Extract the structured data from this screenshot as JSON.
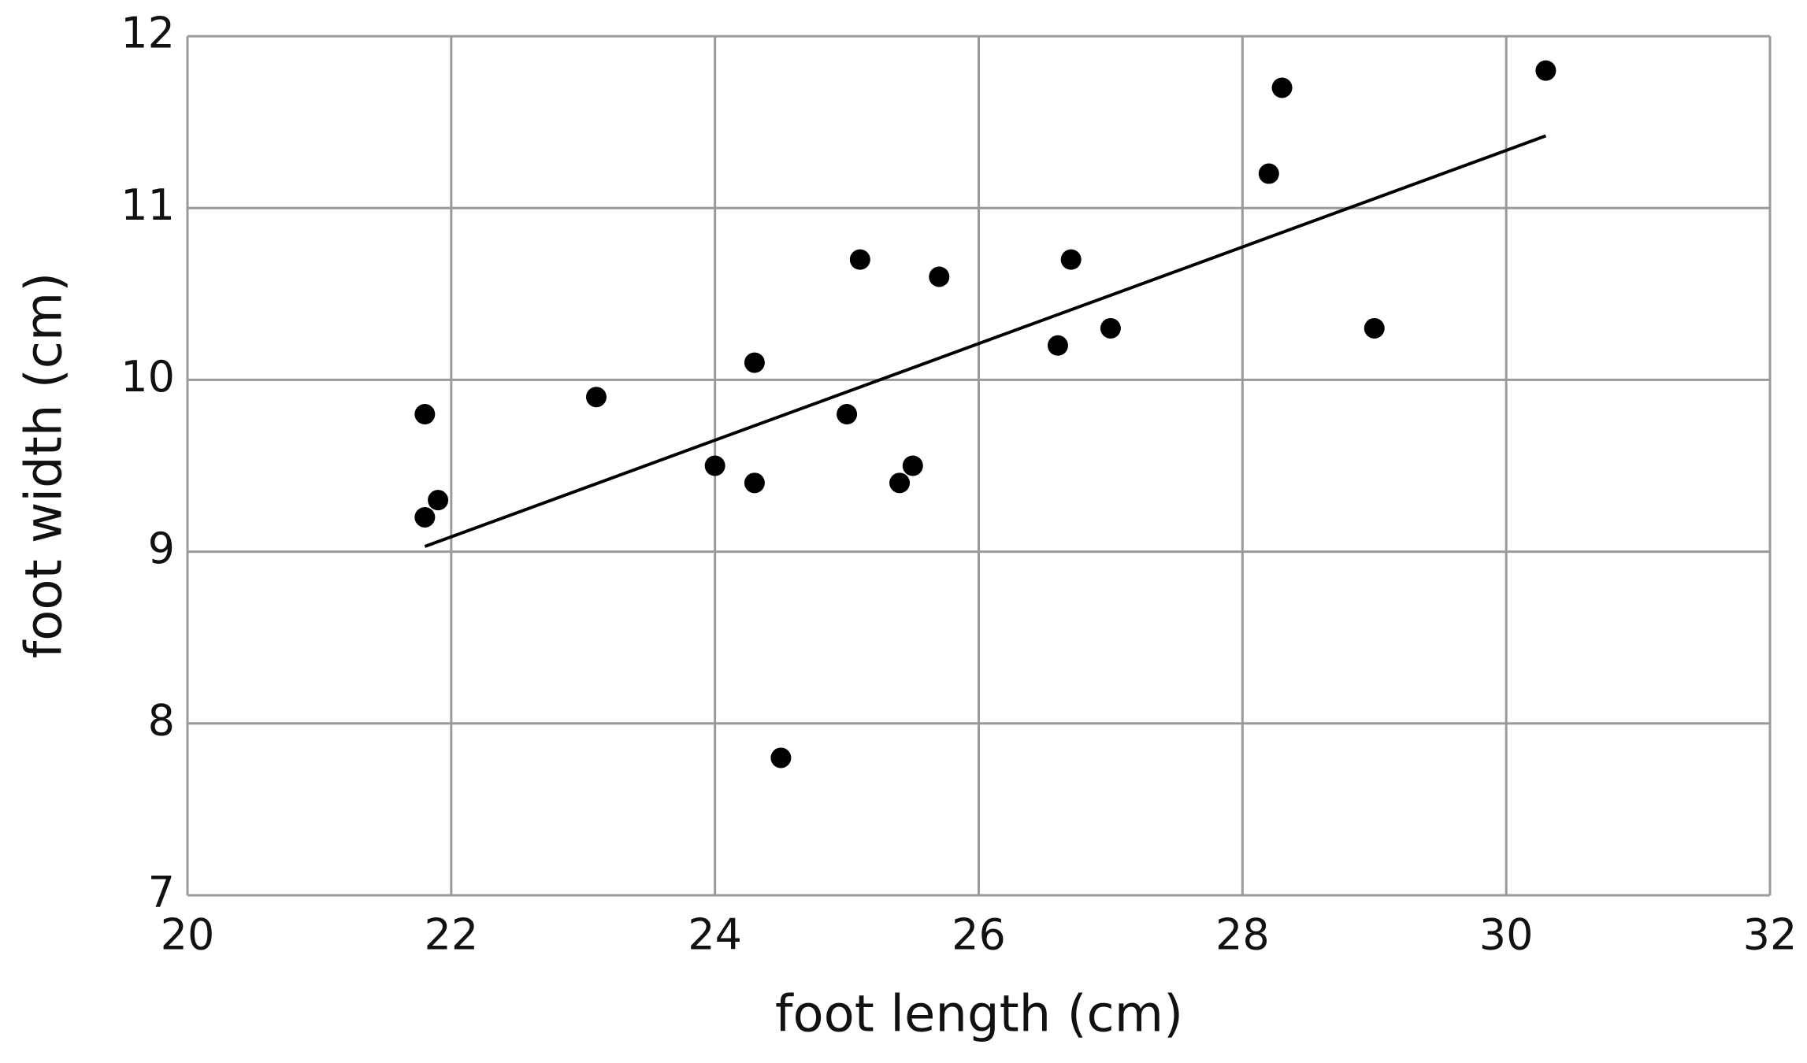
{
  "chart_data": {
    "type": "scatter",
    "x_label": "foot length (cm)",
    "y_label": "foot width (cm)",
    "x": [
      21.8,
      21.8,
      21.9,
      23.1,
      24.0,
      24.3,
      24.3,
      24.5,
      25.0,
      25.1,
      25.4,
      25.5,
      25.7,
      26.6,
      26.7,
      27.0,
      28.2,
      28.3,
      29.0,
      30.3
    ],
    "values": [
      9.8,
      9.2,
      9.3,
      9.9,
      9.5,
      10.1,
      9.4,
      7.8,
      9.8,
      10.7,
      9.4,
      9.5,
      10.6,
      10.2,
      10.7,
      10.3,
      11.2,
      11.7,
      10.3,
      11.8
    ],
    "color": "#000000",
    "trend_line": {
      "x": [
        21.8,
        30.3
      ],
      "values": [
        9.03,
        11.42
      ],
      "color": "#000000"
    },
    "xlim": [
      20,
      32
    ],
    "xticks": [
      20,
      22,
      24,
      26,
      28,
      30,
      32
    ],
    "ylim": [
      7,
      12
    ],
    "yticks": [
      7,
      8,
      9,
      10,
      11,
      12
    ],
    "grid": true
  }
}
